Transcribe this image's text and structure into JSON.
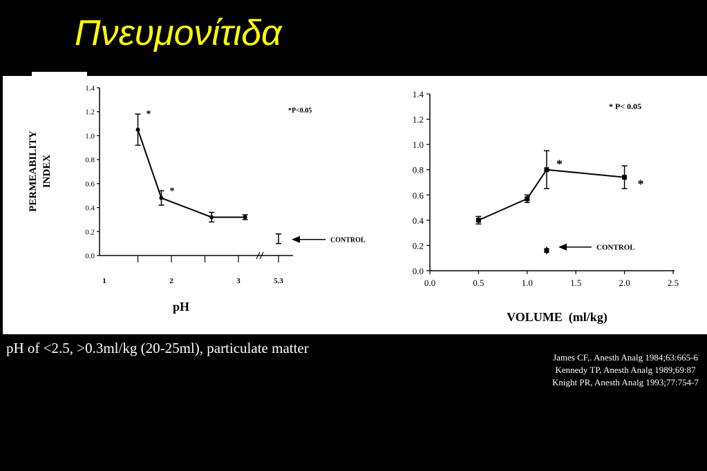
{
  "title": "Πνευμονίτιδα",
  "caption": "pH of <2.5, >0.3ml/kg (20-25ml), particulate matter",
  "references": [
    "James CF,. Anesth Analg 1984;63:665-6",
    "Kennedy TP, Anesth Analg 1989;69:87",
    "Knight PR, Anesth Analg 1993;77:754-7"
  ],
  "chart_data": [
    {
      "type": "line",
      "title": "",
      "xlabel": "pH",
      "ylabel": "PERMEABILITY INDEX",
      "xlim": [
        1,
        3.15
      ],
      "ylim": [
        0,
        1.4
      ],
      "xticks": [
        "1",
        "2",
        "3",
        "5.3"
      ],
      "yticks": [
        "0.0",
        "0.2",
        "0.4",
        "0.6",
        "0.8",
        "1.0",
        "1.2",
        "1.4"
      ],
      "axis_break": true,
      "annotation": "*P<0.05",
      "series": [
        {
          "points": [
            {
              "x": 1.5,
              "y": 1.05,
              "err": 0.13,
              "sig": true
            },
            {
              "x": 1.85,
              "y": 0.48,
              "err": 0.06,
              "sig": true
            },
            {
              "x": 2.6,
              "y": 0.32,
              "err": 0.04,
              "sig": false
            },
            {
              "x": 3.1,
              "y": 0.32,
              "err": 0.02,
              "sig": false
            }
          ]
        }
      ],
      "control": {
        "label": "CONTROL",
        "x": 5.3,
        "y": 0.14,
        "err": 0.04
      }
    },
    {
      "type": "line",
      "title": "",
      "xlabel": "VOLUME  (ml/kg)",
      "ylabel": "",
      "xlim": [
        0,
        2.5
      ],
      "ylim": [
        0,
        1.4
      ],
      "xticks": [
        "0.0",
        "0.5",
        "1.0",
        "1.5",
        "2.0",
        "2.5"
      ],
      "yticks": [
        "0.0",
        "0.2",
        "0.4",
        "0.6",
        "0.8",
        "1.0",
        "1.2",
        "1.4"
      ],
      "annotation": "* P< 0.05",
      "series": [
        {
          "points": [
            {
              "x": 0.5,
              "y": 0.4,
              "err": 0.03,
              "sig": false
            },
            {
              "x": 1.0,
              "y": 0.57,
              "err": 0.03,
              "sig": false
            },
            {
              "x": 1.2,
              "y": 0.8,
              "err": 0.15,
              "sig": true
            },
            {
              "x": 2.0,
              "y": 0.74,
              "err": 0.09,
              "sig": true
            }
          ]
        }
      ],
      "control": {
        "label": "CONTROL",
        "x": 1.2,
        "y": 0.16,
        "err": 0.03
      }
    }
  ]
}
